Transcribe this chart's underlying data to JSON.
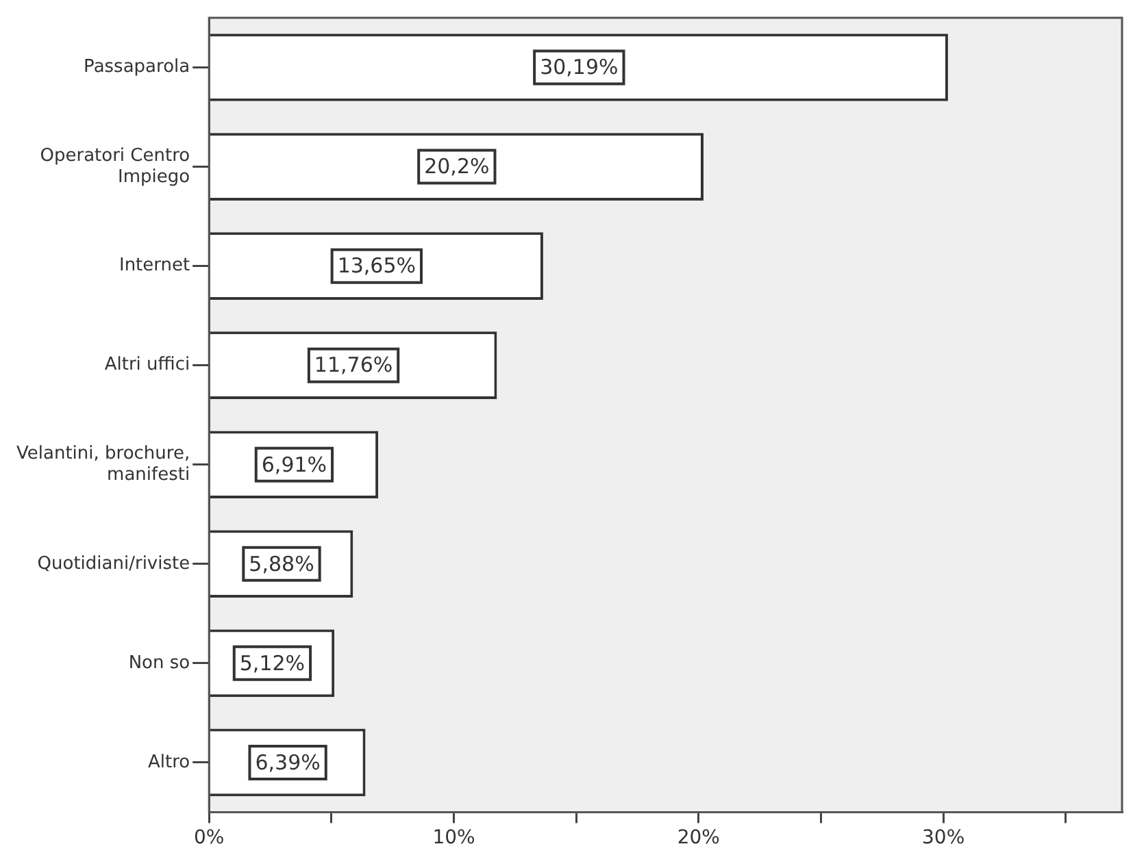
{
  "chart_data": {
    "type": "bar",
    "orientation": "horizontal",
    "categories": [
      "Passaparola",
      "Operatori Centro Impiego",
      "Internet",
      "Altri uffici",
      "Velantini, brochure, manifesti",
      "Quotidiani/riviste",
      "Non so",
      "Altro"
    ],
    "values": [
      30.19,
      20.2,
      13.65,
      11.76,
      6.91,
      5.88,
      5.12,
      6.39
    ],
    "value_labels": [
      "30,19%",
      "20,2%",
      "13,65%",
      "11,76%",
      "6,91%",
      "5,88%",
      "5,12%",
      "6,39%"
    ],
    "color": "#ffffff",
    "xlim": [
      0,
      37.3
    ],
    "xticks": [
      {
        "value": 0,
        "label": "0%"
      },
      {
        "value": 5,
        "label": null
      },
      {
        "value": 10,
        "label": "10%"
      },
      {
        "value": 15,
        "label": null
      },
      {
        "value": 20,
        "label": "20%"
      },
      {
        "value": 25,
        "label": null
      },
      {
        "value": 30,
        "label": "30%"
      },
      {
        "value": 35,
        "label": null
      }
    ],
    "grid": false,
    "legend": false
  }
}
